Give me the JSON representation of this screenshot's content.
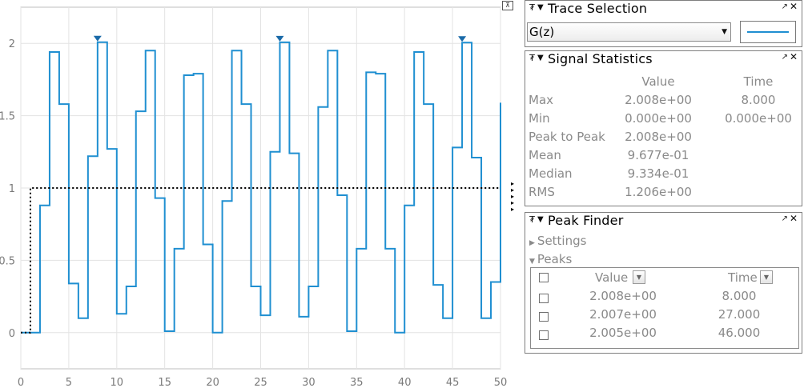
{
  "chart_data": {
    "type": "line",
    "xlim": [
      0,
      50
    ],
    "ylim": [
      -0.25,
      2.25
    ],
    "xticks": [
      "0",
      "5",
      "10",
      "15",
      "20",
      "25",
      "30",
      "35",
      "40",
      "45",
      "50"
    ],
    "yticks": [
      "0",
      "0.5",
      "1",
      "1.5",
      "2"
    ],
    "grid": true,
    "series": [
      {
        "line_style": "stairs",
        "color": "#1f8fd1",
        "x": [
          0,
          1,
          2,
          3,
          4,
          5,
          6,
          7,
          8,
          9,
          10,
          11,
          12,
          13,
          14,
          15,
          16,
          17,
          18,
          19,
          20,
          21,
          22,
          23,
          24,
          25,
          26,
          27,
          28,
          29,
          30,
          31,
          32,
          33,
          34,
          35,
          36,
          37,
          38,
          39,
          40,
          41,
          42,
          43,
          44,
          45,
          46,
          47,
          48,
          49,
          50
        ],
        "y": [
          0,
          0,
          0.88,
          1.94,
          1.58,
          0.34,
          0.1,
          1.22,
          2.008,
          1.27,
          0.13,
          0.32,
          1.53,
          1.95,
          0.93,
          0.01,
          0.58,
          1.78,
          1.79,
          0.61,
          0.0,
          0.91,
          1.95,
          1.58,
          0.32,
          0.12,
          1.25,
          2.007,
          1.24,
          0.11,
          0.32,
          1.56,
          1.95,
          0.95,
          0.01,
          0.58,
          1.8,
          1.79,
          0.58,
          0.0,
          0.88,
          1.94,
          1.58,
          0.33,
          0.1,
          1.28,
          2.005,
          1.21,
          0.1,
          0.35,
          1.59
        ]
      },
      {
        "line_style": "stairs",
        "color": "#000000",
        "x": [
          0,
          1,
          50
        ],
        "y": [
          0,
          1,
          1
        ]
      }
    ],
    "peak_markers": [
      {
        "x": 8,
        "y": 2.008
      },
      {
        "x": 27,
        "y": 2.007
      },
      {
        "x": 46,
        "y": 2.005
      }
    ]
  },
  "trace_selection": {
    "title": "Trace Selection",
    "selected": "G(z)",
    "line_color": "#1f8fd1"
  },
  "signal_statistics": {
    "title": "Signal Statistics",
    "col_value": "Value",
    "col_time": "Time",
    "rows": [
      {
        "label": "Max",
        "value": "2.008e+00",
        "time": "8.000"
      },
      {
        "label": "Min",
        "value": "0.000e+00",
        "time": "0.000e+00"
      },
      {
        "label": "Peak to Peak",
        "value": "2.008e+00",
        "time": ""
      },
      {
        "label": "Mean",
        "value": "9.677e-01",
        "time": ""
      },
      {
        "label": "Median",
        "value": "9.334e-01",
        "time": ""
      },
      {
        "label": "RMS",
        "value": "1.206e+00",
        "time": ""
      }
    ]
  },
  "peak_finder": {
    "title": "Peak Finder",
    "settings_label": "Settings",
    "peaks_label": "Peaks",
    "col_value": "Value",
    "col_time": "Time",
    "rows": [
      {
        "value": "2.008e+00",
        "time": "8.000"
      },
      {
        "value": "2.007e+00",
        "time": "27.000"
      },
      {
        "value": "2.005e+00",
        "time": "46.000"
      }
    ]
  }
}
